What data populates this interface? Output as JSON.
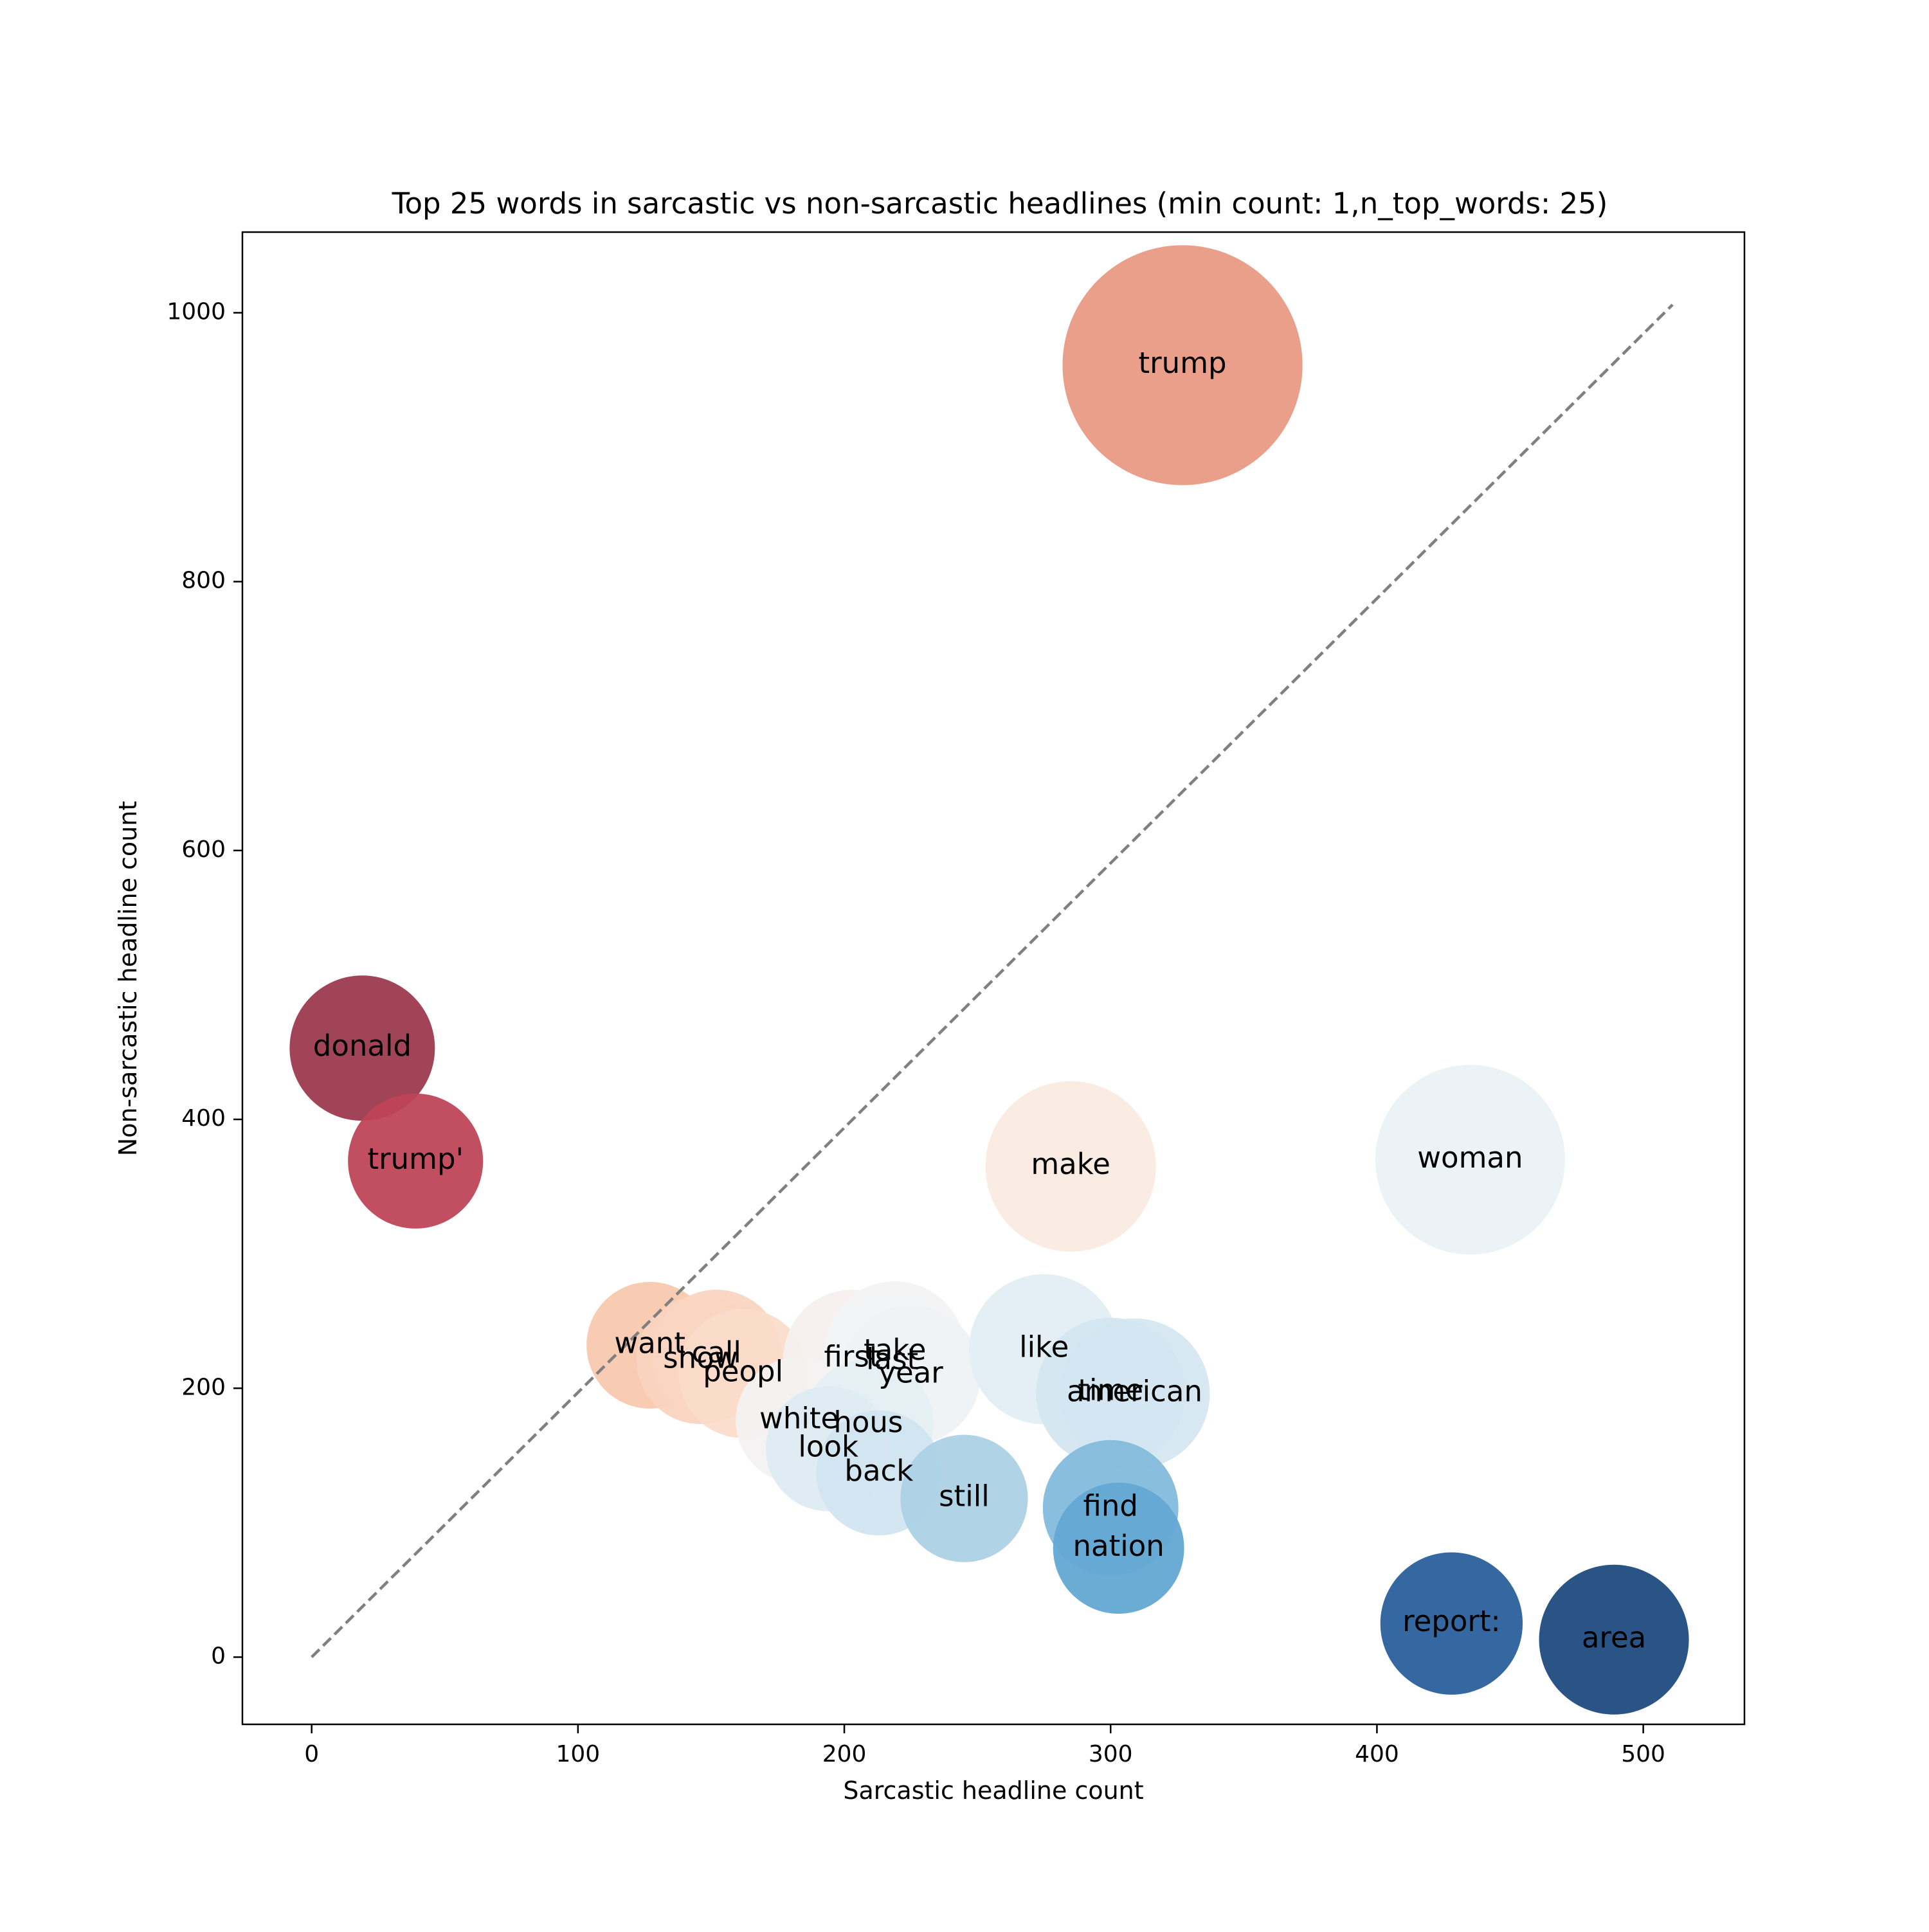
{
  "chart_data": {
    "type": "scatter",
    "title": "Top 25 words in sarcastic vs non-sarcastic headlines (min count: 1,n_top_words: 25)",
    "xlabel": "Sarcastic headline count",
    "ylabel": "Non-sarcastic headline count",
    "xlim": [
      -26,
      538
    ],
    "ylim": [
      -50,
      1060
    ],
    "xticks": [
      0,
      100,
      200,
      300,
      400,
      500
    ],
    "yticks": [
      0,
      200,
      400,
      600,
      800,
      1000
    ],
    "grid": false,
    "reference_line": {
      "from": [
        0,
        0
      ],
      "to": [
        511,
        1006
      ],
      "style": "dashed",
      "color": "#808080"
    },
    "points": [
      {
        "word": "trump",
        "x": 327,
        "y": 961,
        "color": "#e99a84"
      },
      {
        "word": "donald",
        "x": 19,
        "y": 453,
        "color": "#9c3a4e"
      },
      {
        "word": "trump'",
        "x": 39,
        "y": 369,
        "color": "#bf4459"
      },
      {
        "word": "make",
        "x": 285,
        "y": 365,
        "color": "#fbebe1"
      },
      {
        "word": "woman",
        "x": 435,
        "y": 370,
        "color": "#eaf2f5"
      },
      {
        "word": "want",
        "x": 127,
        "y": 232,
        "color": "#f8c9ae"
      },
      {
        "word": "show",
        "x": 146,
        "y": 221,
        "color": "#f9d3bf"
      },
      {
        "word": "call",
        "x": 152,
        "y": 225,
        "color": "#fad5c1"
      },
      {
        "word": "peopl",
        "x": 162,
        "y": 211,
        "color": "#fbdccb"
      },
      {
        "word": "first",
        "x": 203,
        "y": 222,
        "color": "#f6f0ed"
      },
      {
        "word": "take",
        "x": 219,
        "y": 227,
        "color": "#f4f3f3"
      },
      {
        "word": "last",
        "x": 218,
        "y": 220,
        "color": "#f2f3f4"
      },
      {
        "word": "year",
        "x": 225,
        "y": 210,
        "color": "#eff2f4"
      },
      {
        "word": "like",
        "x": 275,
        "y": 229,
        "color": "#e3eef4"
      },
      {
        "word": "american",
        "x": 309,
        "y": 196,
        "color": "#d6e7f1"
      },
      {
        "word": "time",
        "x": 300,
        "y": 197,
        "color": "#d4e6f0"
      },
      {
        "word": "white",
        "x": 183,
        "y": 176,
        "color": "#f3f1f1"
      },
      {
        "word": "hous",
        "x": 209,
        "y": 173,
        "color": "#e4eef3"
      },
      {
        "word": "look",
        "x": 194,
        "y": 155,
        "color": "#deebf2"
      },
      {
        "word": "back",
        "x": 213,
        "y": 137,
        "color": "#d1e5f0"
      },
      {
        "word": "still",
        "x": 245,
        "y": 118,
        "color": "#acd2e5"
      },
      {
        "word": "find",
        "x": 300,
        "y": 111,
        "color": "#84bbdc"
      },
      {
        "word": "nation",
        "x": 303,
        "y": 81,
        "color": "#63a8d3"
      },
      {
        "word": "report:",
        "x": 428,
        "y": 25,
        "color": "#2a609b"
      },
      {
        "word": "area",
        "x": 489,
        "y": 13,
        "color": "#1f4a7f"
      }
    ]
  }
}
